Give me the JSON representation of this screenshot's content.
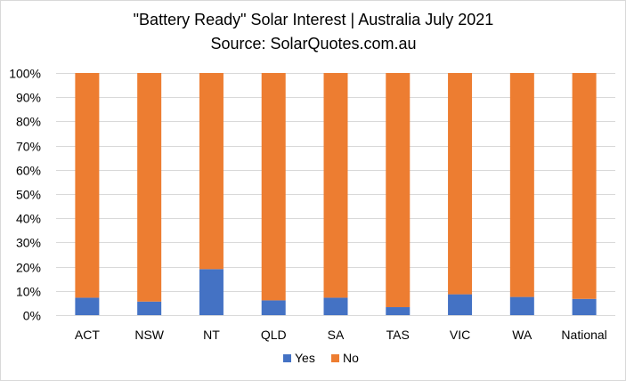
{
  "chart_data": {
    "type": "bar",
    "stacked": true,
    "title": "\"Battery Ready\" Solar Interest | Australia July 2021",
    "subtitle": "Source: SolarQuotes.com.au",
    "xlabel": "",
    "ylabel": "",
    "ylim": [
      0,
      100
    ],
    "y_ticks": [
      0,
      10,
      20,
      30,
      40,
      50,
      60,
      70,
      80,
      90,
      100
    ],
    "y_tick_labels": [
      "0%",
      "10%",
      "20%",
      "30%",
      "40%",
      "50%",
      "60%",
      "70%",
      "80%",
      "90%",
      "100%"
    ],
    "grid": true,
    "legend_position": "bottom",
    "categories": [
      "ACT",
      "NSW",
      "NT",
      "QLD",
      "SA",
      "TAS",
      "VIC",
      "WA",
      "National"
    ],
    "series": [
      {
        "name": "Yes",
        "color": "#4472c4",
        "values": [
          7.2,
          5.6,
          19,
          6.1,
          7.2,
          3.3,
          8.6,
          7.5,
          6.7
        ]
      },
      {
        "name": "No",
        "color": "#ed7d31",
        "values": [
          92.8,
          94.4,
          81,
          93.9,
          92.8,
          96.7,
          91.4,
          92.5,
          93.3
        ]
      }
    ]
  }
}
